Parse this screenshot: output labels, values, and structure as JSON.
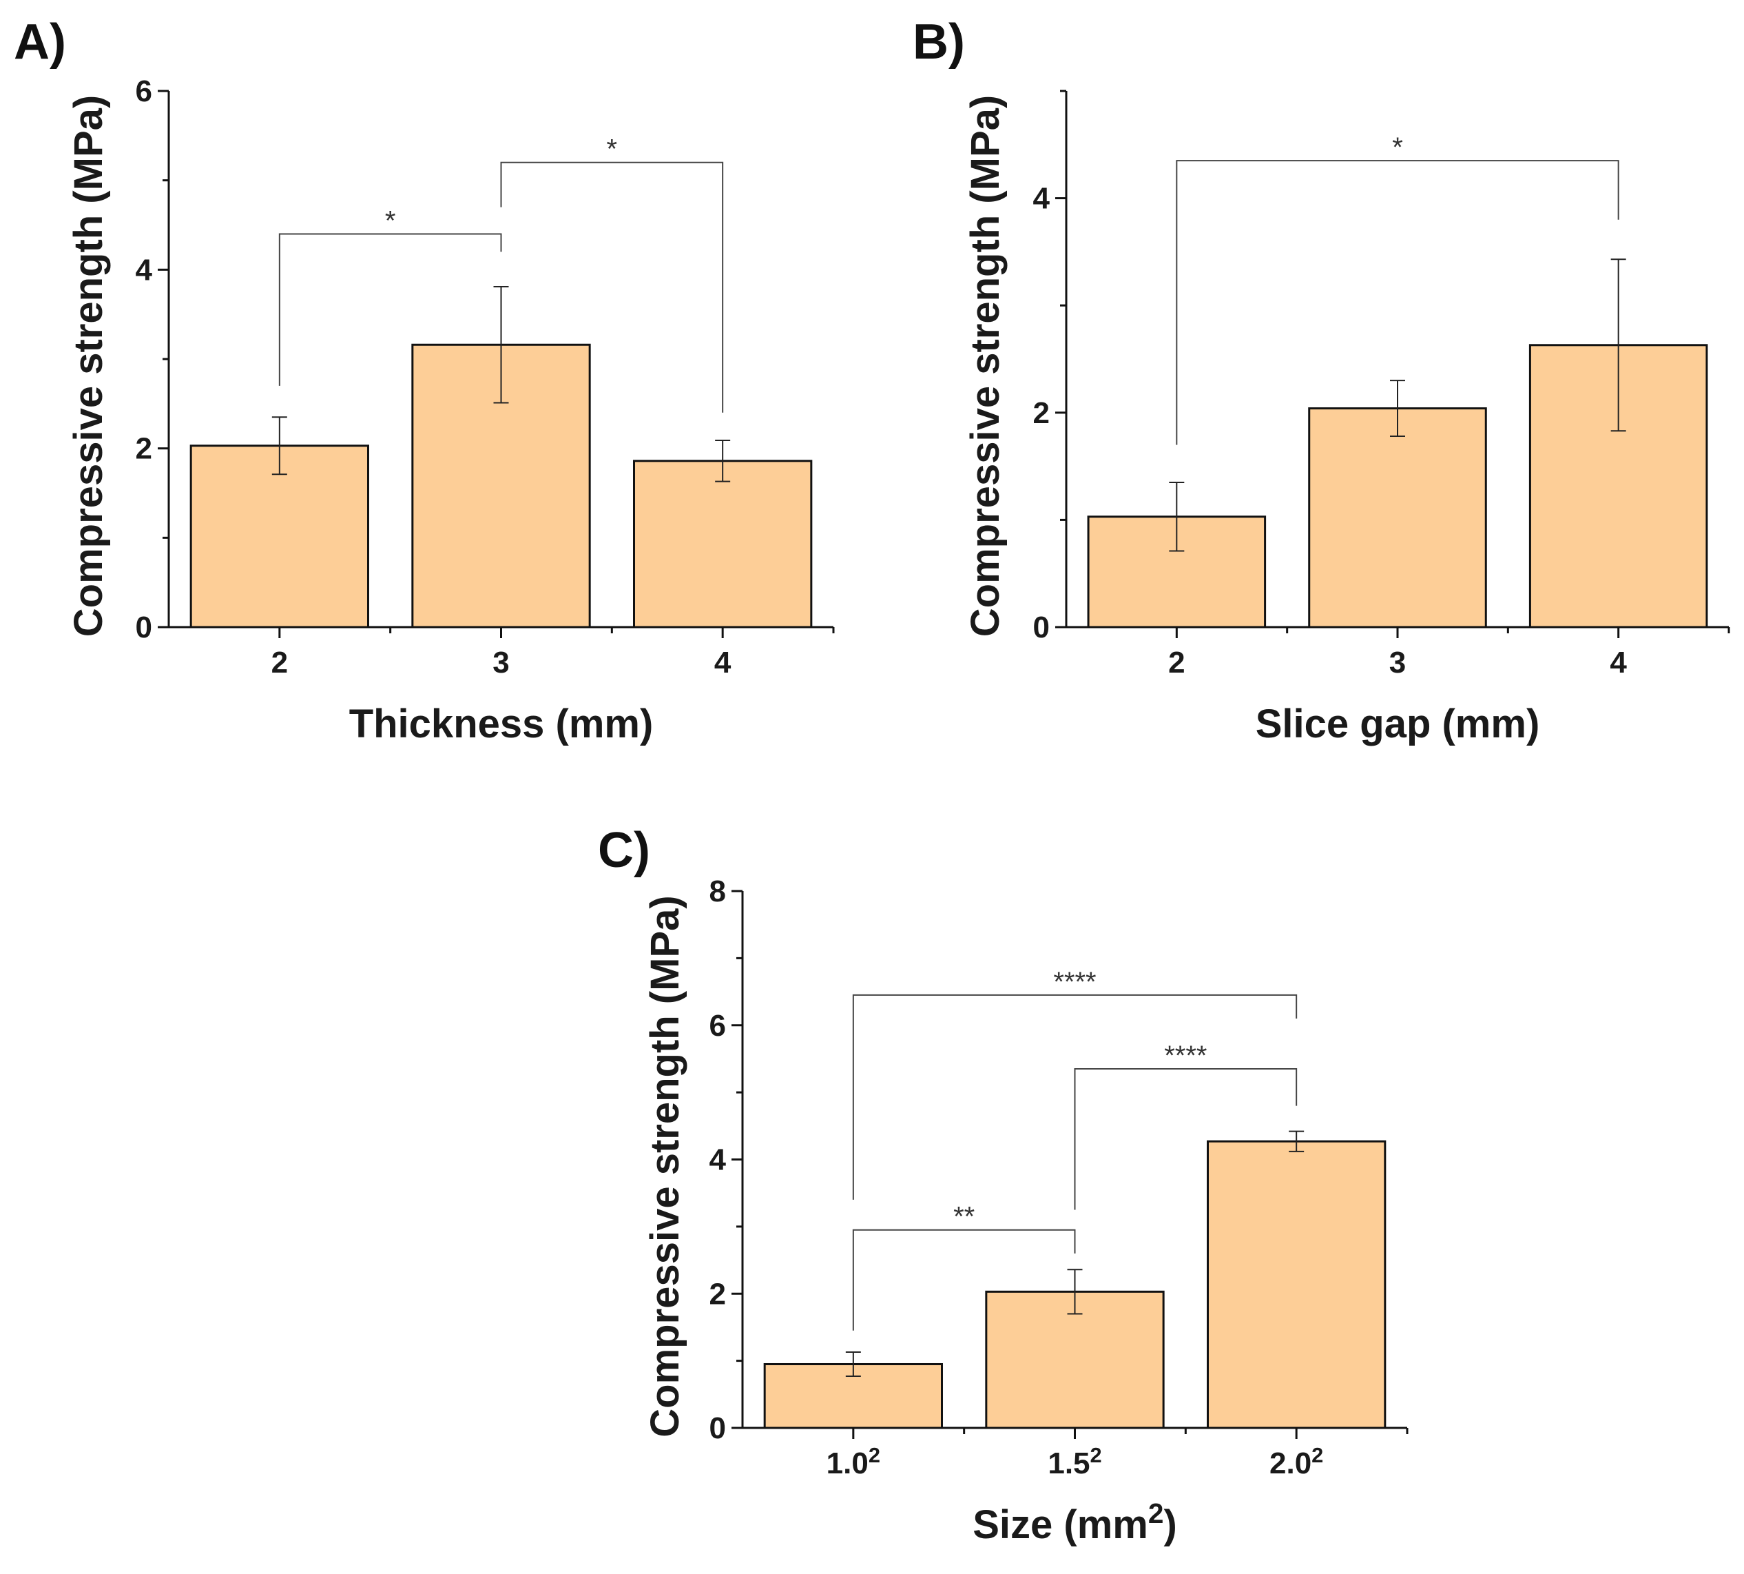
{
  "chart_data": [
    {
      "id": "A",
      "panel_label": "A)",
      "type": "bar",
      "categories": [
        "2",
        "3",
        "4"
      ],
      "values": [
        2.03,
        3.16,
        1.86
      ],
      "errors": [
        0.32,
        0.65,
        0.23
      ],
      "xlabel": "Thickness (mm)",
      "ylabel": "Compressive strength (MPa)",
      "ylim": [
        0,
        6
      ],
      "yticks": [
        0,
        2,
        4,
        6
      ],
      "yminor": [
        1,
        3,
        5
      ],
      "significance": [
        {
          "from": 0,
          "to": 1,
          "label": "*",
          "bracket_y": 4.4,
          "left_foot": 2.7,
          "right_foot": 4.2
        },
        {
          "from": 1,
          "to": 2,
          "label": "*",
          "bracket_y": 5.2,
          "left_foot": 4.7,
          "right_foot": 2.4
        }
      ]
    },
    {
      "id": "B",
      "panel_label": "B)",
      "type": "bar",
      "categories": [
        "2",
        "3",
        "4"
      ],
      "values": [
        1.03,
        2.04,
        2.63
      ],
      "errors": [
        0.32,
        0.26,
        0.8
      ],
      "xlabel": "Slice gap (mm)",
      "ylabel": "Compressive strength (MPa)",
      "ylim": [
        0,
        5
      ],
      "yticks": [
        0,
        2,
        4
      ],
      "yminor": [
        1,
        3,
        5
      ],
      "significance": [
        {
          "from": 0,
          "to": 2,
          "label": "*",
          "bracket_y": 4.35,
          "left_foot": 1.7,
          "right_foot": 3.8
        }
      ]
    },
    {
      "id": "C",
      "panel_label": "C)",
      "type": "bar",
      "categories": [
        {
          "base": "1.0",
          "sup": "2"
        },
        {
          "base": "1.5",
          "sup": "2"
        },
        {
          "base": "2.0",
          "sup": "2"
        }
      ],
      "values": [
        0.95,
        2.03,
        4.27
      ],
      "errors": [
        0.18,
        0.33,
        0.15
      ],
      "xlabel": {
        "base": "Size (mm",
        "sup": "2",
        "tail": ")"
      },
      "ylabel": "Compressive strength (MPa)",
      "ylim": [
        0,
        8
      ],
      "yticks": [
        0,
        2,
        4,
        6,
        8
      ],
      "yminor": [
        1,
        3,
        5,
        7
      ],
      "significance": [
        {
          "from": 0,
          "to": 1,
          "label": "**",
          "bracket_y": 2.95,
          "left_foot": 1.45,
          "right_foot": 2.6
        },
        {
          "from": 1,
          "to": 2,
          "label": "****",
          "bracket_y": 5.35,
          "left_foot": 3.25,
          "right_foot": 4.8
        },
        {
          "from": 0,
          "to": 2,
          "label": "****",
          "bracket_y": 6.45,
          "left_foot": 3.4,
          "right_foot": 6.1
        }
      ]
    }
  ]
}
